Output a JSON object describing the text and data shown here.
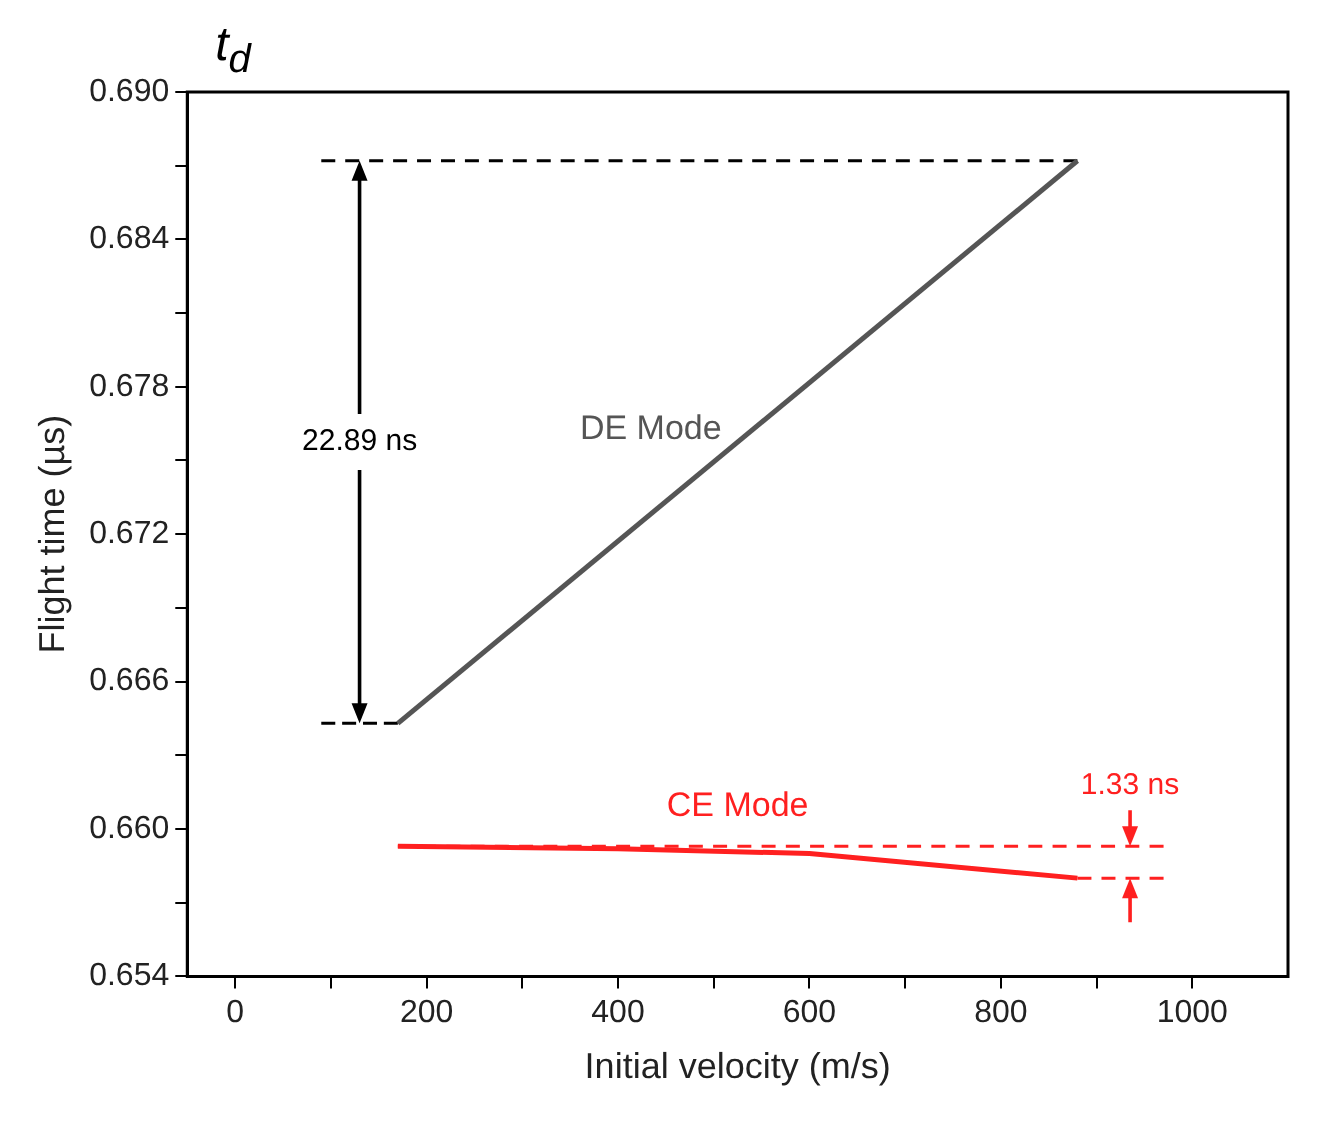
{
  "chart_data": {
    "type": "line",
    "title": "t$_{d}$",
    "xlabel": "Initial velocity (m/s)",
    "ylabel": "Flight time (µs)",
    "series": [
      {
        "name": "DE Mode",
        "color": "#555555",
        "x": [
          170,
          880
        ],
        "values": [
          0.6643,
          0.6872
        ]
      },
      {
        "name": "CE Mode",
        "color": "#ff2020",
        "x": [
          170,
          400,
          600,
          880
        ],
        "values": [
          0.6593,
          0.6592,
          0.659,
          0.658
        ]
      },
      {
        "color": "#000000",
        "line_style": "dashed",
        "x": [
          90,
          880
        ],
        "values": [
          0.6872,
          0.6872
        ]
      },
      {
        "color": "#000000",
        "line_style": "dashed",
        "x": [
          90,
          170
        ],
        "values": [
          0.6643,
          0.6643
        ]
      },
      {
        "color": "#ff2020",
        "line_style": "dashed",
        "x": [
          170,
          970
        ],
        "values": [
          0.6593,
          0.6593
        ]
      },
      {
        "color": "#ff2020",
        "line_style": "dashed",
        "x": [
          880,
          970
        ],
        "values": [
          0.658,
          0.658
        ]
      }
    ],
    "xlim": [
      -50,
      1100
    ],
    "xticks": [
      0,
      {
        "value": 100,
        "label": null
      },
      200,
      {
        "value": 300,
        "label": null
      },
      400,
      {
        "value": 500,
        "label": null
      },
      600,
      {
        "value": 700,
        "label": null
      },
      800,
      {
        "value": 900,
        "label": null
      },
      1000
    ],
    "ylim": [
      0.654,
      0.69
    ],
    "yticks": [
      {
        "value": 0.654,
        "label": "0.654"
      },
      {
        "value": 0.657,
        "label": null
      },
      {
        "value": 0.66,
        "label": "0.660"
      },
      {
        "value": 0.663,
        "label": null
      },
      {
        "value": 0.666,
        "label": "0.666"
      },
      {
        "value": 0.669,
        "label": null
      },
      {
        "value": 0.672,
        "label": "0.672"
      },
      {
        "value": 0.675,
        "label": null
      },
      {
        "value": 0.678,
        "label": "0.678"
      },
      {
        "value": 0.681,
        "label": null
      },
      {
        "value": 0.684,
        "label": "0.684"
      },
      {
        "value": 0.687,
        "label": null
      },
      {
        "value": 0.69,
        "label": "0.690"
      }
    ],
    "annotations": [
      {
        "text": "22.89 ns",
        "x": 130,
        "y": 0.6872
      },
      {
        "text": "1.33 ns",
        "x": 935,
        "y": 0.6593
      }
    ],
    "grid": false,
    "legend": false,
    "marker": "none",
    "line_style": "solid"
  }
}
